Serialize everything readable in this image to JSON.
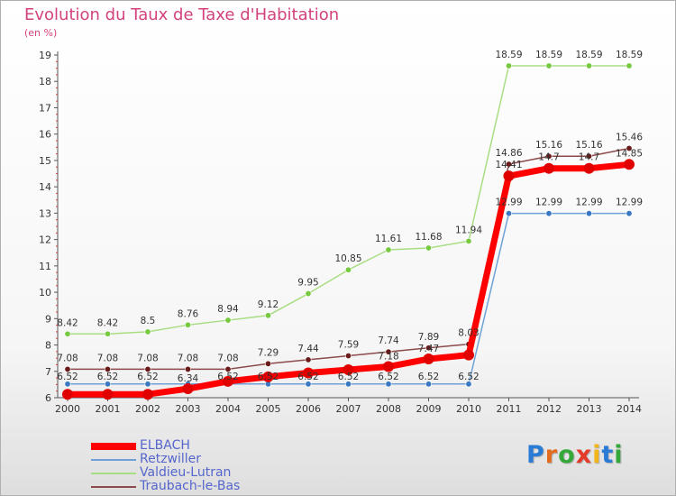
{
  "title": "Evolution du Taux de Taxe d'Habitation",
  "subtitle": "(en %)",
  "logo": {
    "text": "Proxiti"
  },
  "chart_data": {
    "type": "line",
    "title": "Evolution du Taux de Taxe d'Habitation",
    "subtitle": "(en %)",
    "xlabel": "",
    "ylabel": "(en %)",
    "x": [
      "2000",
      "2001",
      "2002",
      "2003",
      "2004",
      "2005",
      "2006",
      "2007",
      "2008",
      "2009",
      "2010",
      "2011",
      "2012",
      "2013",
      "2014"
    ],
    "ylim": [
      6,
      19
    ],
    "yticks": [
      "6",
      "7",
      "8",
      "9",
      "10",
      "11",
      "12",
      "13",
      "14",
      "15",
      "16",
      "17",
      "18",
      "19"
    ],
    "grid": false,
    "legend_position": "bottom-left",
    "series": [
      {
        "name": "ELBACH",
        "color": "#ff0000",
        "marker": "#e00000",
        "values": [
          6.13,
          6.13,
          6.13,
          6.34,
          6.62,
          6.79,
          6.94,
          7.06,
          7.18,
          7.47,
          7.62,
          14.41,
          14.7,
          14.7,
          14.85
        ],
        "labels": [
          "",
          "",
          "",
          "6.34",
          "",
          "",
          "",
          "",
          "7.18",
          "7.47",
          "",
          "14.41",
          "14.7",
          "14.7",
          "14.85"
        ]
      },
      {
        "name": "Retzwiller",
        "color": "#6fa1d6",
        "marker": "#3a78c4",
        "values": [
          6.52,
          6.52,
          6.52,
          6.52,
          6.52,
          6.52,
          6.52,
          6.52,
          6.52,
          6.52,
          6.52,
          12.99,
          12.99,
          12.99,
          12.99
        ],
        "labels": [
          "6.52",
          "6.52",
          "6.52",
          "",
          "6.52",
          "6.52",
          "6.52",
          "6.52",
          "6.52",
          "6.52",
          "6.52",
          "12.99",
          "12.99",
          "12.99",
          "12.99"
        ]
      },
      {
        "name": "Valdieu-Lutran",
        "color": "#a9dd84",
        "marker": "#77c940",
        "values": [
          8.42,
          8.42,
          8.5,
          8.76,
          8.94,
          9.12,
          9.95,
          10.85,
          11.61,
          11.68,
          11.94,
          18.59,
          18.59,
          18.59,
          18.59
        ],
        "labels": [
          "8.42",
          "8.42",
          "8.5",
          "8.76",
          "8.94",
          "9.12",
          "9.95",
          "10.85",
          "11.61",
          "11.68",
          "11.94",
          "18.59",
          "18.59",
          "18.59",
          "18.59"
        ]
      },
      {
        "name": "Traubach-le-Bas",
        "color": "#8c4a4a",
        "marker": "#6a1a1a",
        "values": [
          7.08,
          7.08,
          7.08,
          7.08,
          7.08,
          7.29,
          7.44,
          7.59,
          7.74,
          7.89,
          8.03,
          14.86,
          15.16,
          15.16,
          15.46
        ],
        "labels": [
          "7.08",
          "7.08",
          "7.08",
          "7.08",
          "7.08",
          "7.29",
          "7.44",
          "7.59",
          "7.74",
          "7.89",
          "8.03",
          "14.86",
          "15.16",
          "15.16",
          "15.46"
        ]
      }
    ]
  }
}
